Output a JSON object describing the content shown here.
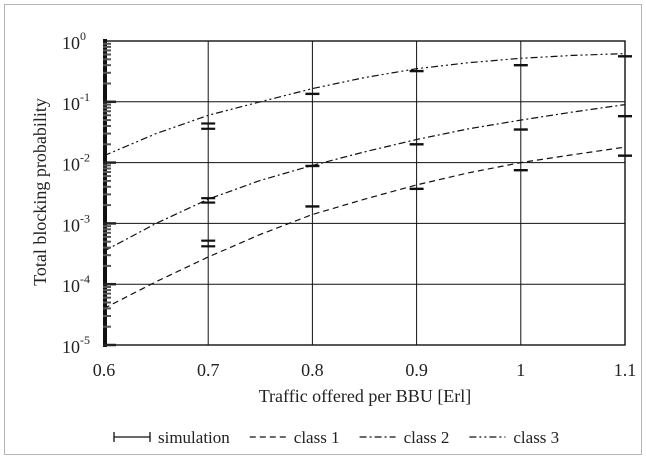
{
  "chart_data": {
    "type": "line",
    "title": "",
    "xlabel": "Traffic offered per BBU [Erl]",
    "ylabel": "Total blocking probability",
    "xlim": [
      0.6,
      1.1
    ],
    "ylim": [
      1e-05,
      1
    ],
    "yscale": "log",
    "grid": true,
    "legend_position": "bottom",
    "x_ticks": [
      {
        "value": 0.6,
        "label": "0.6"
      },
      {
        "value": 0.7,
        "label": "0.7"
      },
      {
        "value": 0.8,
        "label": "0.8"
      },
      {
        "value": 0.9,
        "label": "0.9"
      },
      {
        "value": 1.0,
        "label": "1"
      },
      {
        "value": 1.1,
        "label": "1.1"
      }
    ],
    "y_ticks": [
      {
        "exp": 0,
        "base": "10",
        "sup": "0"
      },
      {
        "exp": -1,
        "base": "10",
        "sup": "-1"
      },
      {
        "exp": -2,
        "base": "10",
        "sup": "-2"
      },
      {
        "exp": -3,
        "base": "10",
        "sup": "-3"
      },
      {
        "exp": -4,
        "base": "10",
        "sup": "-4"
      },
      {
        "exp": -5,
        "base": "10",
        "sup": "-5"
      }
    ],
    "series": [
      {
        "name": "class 1",
        "style": "dashed",
        "x": [
          0.6,
          0.65,
          0.7,
          0.75,
          0.8,
          0.85,
          0.9,
          0.95,
          1.0,
          1.05,
          1.1
        ],
        "y": [
          4e-05,
          0.00011,
          0.00028,
          0.00066,
          0.0014,
          0.0025,
          0.0043,
          0.0068,
          0.01,
          0.0135,
          0.018
        ]
      },
      {
        "name": "class 2",
        "style": "dashdot",
        "x": [
          0.6,
          0.65,
          0.7,
          0.75,
          0.8,
          0.85,
          0.9,
          0.95,
          1.0,
          1.05,
          1.1
        ],
        "y": [
          0.00035,
          0.001,
          0.0025,
          0.0051,
          0.009,
          0.015,
          0.024,
          0.036,
          0.05,
          0.068,
          0.09
        ]
      },
      {
        "name": "class 3",
        "style": "dashdotdot",
        "x": [
          0.6,
          0.65,
          0.7,
          0.75,
          0.8,
          0.85,
          0.9,
          0.95,
          1.0,
          1.05,
          1.1
        ],
        "y": [
          0.013,
          0.03,
          0.06,
          0.1,
          0.165,
          0.25,
          0.35,
          0.44,
          0.52,
          0.58,
          0.62
        ]
      }
    ],
    "simulation": [
      {
        "x": 0.7,
        "lo": 0.00042,
        "hi": 0.00052
      },
      {
        "x": 0.7,
        "lo": 0.0022,
        "hi": 0.0026
      },
      {
        "x": 0.7,
        "lo": 0.036,
        "hi": 0.044
      },
      {
        "x": 0.8,
        "lo": 0.0019,
        "hi": 0.0019
      },
      {
        "x": 0.8,
        "lo": 0.0088,
        "hi": 0.0088
      },
      {
        "x": 0.8,
        "lo": 0.135,
        "hi": 0.135
      },
      {
        "x": 0.9,
        "lo": 0.0037,
        "hi": 0.0037
      },
      {
        "x": 0.9,
        "lo": 0.02,
        "hi": 0.02
      },
      {
        "x": 0.9,
        "lo": 0.32,
        "hi": 0.32
      },
      {
        "x": 1.0,
        "lo": 0.0075,
        "hi": 0.0075
      },
      {
        "x": 1.0,
        "lo": 0.035,
        "hi": 0.035
      },
      {
        "x": 1.0,
        "lo": 0.4,
        "hi": 0.4
      },
      {
        "x": 1.1,
        "lo": 0.013,
        "hi": 0.013
      },
      {
        "x": 1.1,
        "lo": 0.058,
        "hi": 0.058
      },
      {
        "x": 1.1,
        "lo": 0.56,
        "hi": 0.56
      }
    ],
    "legend": [
      {
        "label": "simulation",
        "style": "errorbar"
      },
      {
        "label": "class 1",
        "style": "dashed"
      },
      {
        "label": "class 2",
        "style": "dashdot"
      },
      {
        "label": "class 3",
        "style": "dashdotdot"
      }
    ]
  }
}
